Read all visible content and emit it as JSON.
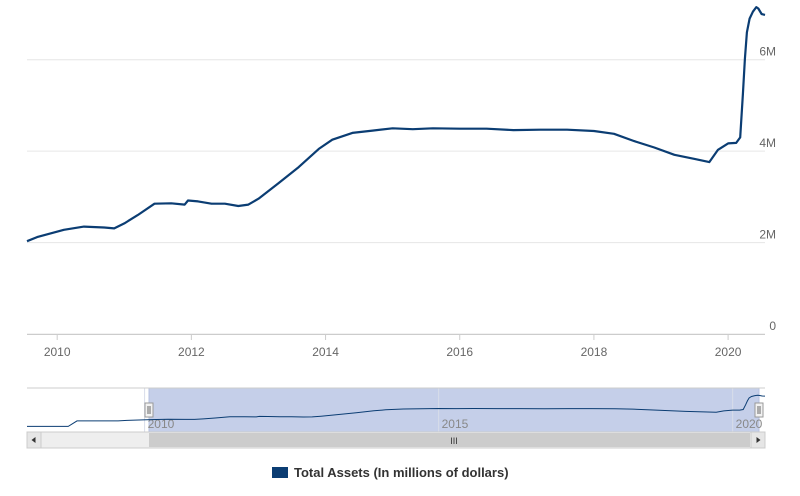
{
  "chart_data": {
    "type": "line",
    "title": "",
    "xlabel": "",
    "ylabel": "",
    "xlim": [
      2009.55,
      2020.55
    ],
    "ylim": [
      0,
      7
    ],
    "grid": true,
    "legend_placement": "bottom-center",
    "x_ticks": [
      "2010",
      "2012",
      "2014",
      "2016",
      "2018",
      "2020"
    ],
    "y_ticks": [
      "0",
      "2M",
      "4M",
      "6M"
    ],
    "series": [
      {
        "name": "Total Assets (In millions of dollars)",
        "color": "#0b3d73",
        "x": [
          2009.55,
          2009.7,
          2009.9,
          2010.1,
          2010.4,
          2010.7,
          2010.85,
          2011.0,
          2011.2,
          2011.45,
          2011.7,
          2011.9,
          2011.95,
          2012.1,
          2012.3,
          2012.5,
          2012.7,
          2012.85,
          2013.0,
          2013.3,
          2013.6,
          2013.9,
          2014.1,
          2014.4,
          2014.7,
          2015.0,
          2015.3,
          2015.6,
          2016.0,
          2016.4,
          2016.8,
          2017.2,
          2017.6,
          2018.0,
          2018.3,
          2018.6,
          2018.9,
          2019.2,
          2019.5,
          2019.72,
          2019.85,
          2020.0,
          2020.12,
          2020.18,
          2020.22,
          2020.25,
          2020.28,
          2020.32,
          2020.37,
          2020.42,
          2020.45,
          2020.5,
          2020.55
        ],
        "values": [
          2.03,
          2.12,
          2.2,
          2.28,
          2.35,
          2.33,
          2.31,
          2.42,
          2.6,
          2.85,
          2.86,
          2.83,
          2.92,
          2.9,
          2.85,
          2.85,
          2.8,
          2.83,
          2.96,
          3.3,
          3.65,
          4.05,
          4.25,
          4.4,
          4.45,
          4.5,
          4.48,
          4.5,
          4.49,
          4.49,
          4.46,
          4.47,
          4.47,
          4.44,
          4.38,
          4.22,
          4.08,
          3.92,
          3.83,
          3.76,
          4.03,
          4.17,
          4.18,
          4.3,
          5.25,
          6.02,
          6.6,
          6.9,
          7.05,
          7.15,
          7.12,
          7.0,
          6.98
        ]
      }
    ],
    "navigator": {
      "x_ticks": [
        "2010",
        "2015",
        "2020"
      ],
      "scrollbar_grip": "III"
    }
  }
}
